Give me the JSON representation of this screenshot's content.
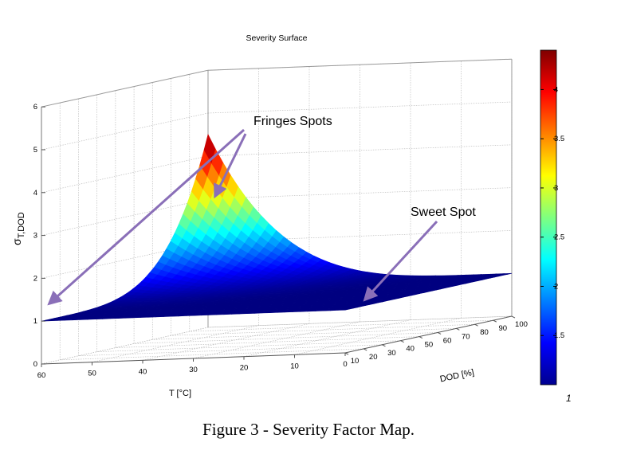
{
  "figure": {
    "caption": "Figure 3 - Severity Factor Map."
  },
  "chart_data": {
    "type": "surface",
    "title": "Severity Surface",
    "zlabel": "σT,DOD",
    "zlabel_main": "σ",
    "zlabel_sub": "T,DOD",
    "xlabel": "T [°C]",
    "ylabel": "DOD [%]",
    "xlim": [
      0,
      60
    ],
    "ylim": [
      10,
      100
    ],
    "zlim": [
      0,
      6
    ],
    "x_ticks": [
      "0",
      "10",
      "20",
      "30",
      "40",
      "50",
      "60"
    ],
    "y_ticks": [
      "10",
      "20",
      "30",
      "40",
      "50",
      "60",
      "70",
      "80",
      "90",
      "100"
    ],
    "z_ticks": [
      "0",
      "1",
      "2",
      "3",
      "4",
      "5",
      "6"
    ],
    "surface_corners": [
      {
        "T": 60,
        "DOD": 10,
        "value": 1.0
      },
      {
        "T": 0,
        "DOD": 10,
        "value": 1.0
      },
      {
        "T": 0,
        "DOD": 100,
        "value": 1.0
      },
      {
        "T": 60,
        "DOD": 100,
        "value": 4.5
      }
    ],
    "peak": {
      "T": 60,
      "DOD": 100,
      "value": 4.5
    },
    "colorbar": {
      "range": [
        1,
        4.4
      ],
      "ticks": [
        "1.5",
        "2",
        "2.5",
        "3",
        "3.5",
        "4"
      ],
      "bottom_label": "1",
      "colormap": "jet"
    },
    "annotations": [
      {
        "text": "Fringes Spots"
      },
      {
        "text": "Sweet Spot"
      }
    ],
    "grid": true
  }
}
